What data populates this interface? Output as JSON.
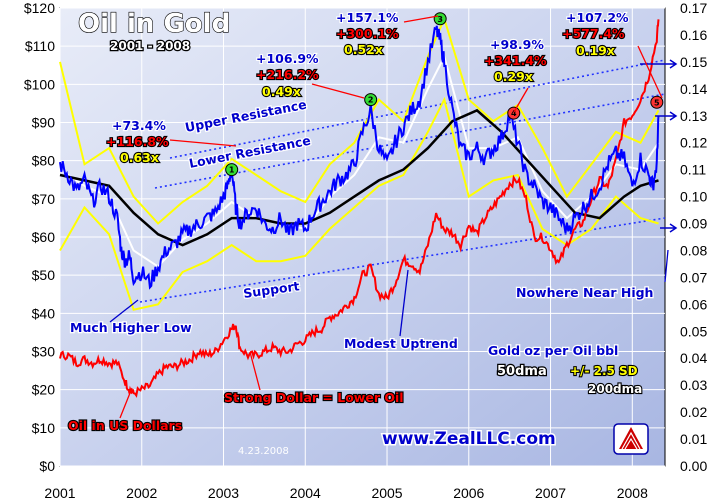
{
  "chart_data": {
    "type": "line",
    "title": "Oil in Gold",
    "subtitle": "2001 - 2008",
    "date_stamp": "4.23.2008",
    "website": "www.ZealLLC.com",
    "x_range": [
      2001.0,
      2008.4
    ],
    "x_ticks": [
      "2001",
      "2002",
      "2003",
      "2004",
      "2005",
      "2006",
      "2007",
      "2008"
    ],
    "y_left": {
      "range": [
        0,
        120
      ],
      "ticks": [
        "$0",
        "$10",
        "$20",
        "$30",
        "$40",
        "$50",
        "$60",
        "$70",
        "$80",
        "$90",
        "$100",
        "$110",
        "$120"
      ]
    },
    "y_right": {
      "range": [
        0.0,
        0.17
      ],
      "ticks": [
        "0.00",
        "0.01",
        "0.02",
        "0.03",
        "0.04",
        "0.05",
        "0.06",
        "0.07",
        "0.08",
        "0.09",
        "0.10",
        "0.11",
        "0.12",
        "0.13",
        "0.14",
        "0.15",
        "0.16",
        "0.17"
      ]
    },
    "grid": true,
    "legend_text": {
      "line1": "Gold oz per Oil bbl",
      "line2a": "50dma",
      "line2b": "+/- 2.5 SD",
      "line3": "200dma"
    },
    "series": [
      {
        "name": "Gold oz per Oil bbl",
        "axis": "right",
        "color": "#0000ff",
        "x": [
          2001.0,
          2001.1,
          2001.2,
          2001.3,
          2001.4,
          2001.5,
          2001.6,
          2001.7,
          2001.75,
          2001.8,
          2001.85,
          2001.9,
          2002.0,
          2002.1,
          2002.2,
          2002.3,
          2002.4,
          2002.5,
          2002.6,
          2002.7,
          2002.8,
          2002.9,
          2003.0,
          2003.05,
          2003.1,
          2003.15,
          2003.2,
          2003.3,
          2003.4,
          2003.5,
          2003.6,
          2003.7,
          2003.8,
          2003.9,
          2004.0,
          2004.1,
          2004.2,
          2004.3,
          2004.4,
          2004.5,
          2004.6,
          2004.7,
          2004.8,
          2004.9,
          2005.0,
          2005.1,
          2005.2,
          2005.3,
          2005.4,
          2005.5,
          2005.6,
          2005.65,
          2005.7,
          2005.8,
          2005.9,
          2006.0,
          2006.1,
          2006.2,
          2006.3,
          2006.4,
          2006.5,
          2006.6,
          2006.7,
          2006.8,
          2006.9,
          2007.0,
          2007.1,
          2007.2,
          2007.3,
          2007.4,
          2007.5,
          2007.6,
          2007.7,
          2007.8,
          2007.9,
          2008.0,
          2008.1,
          2008.2,
          2008.25,
          2008.3,
          2008.32
        ],
        "values": [
          0.112,
          0.108,
          0.102,
          0.106,
          0.098,
          0.104,
          0.1,
          0.092,
          0.08,
          0.076,
          0.078,
          0.07,
          0.072,
          0.068,
          0.074,
          0.08,
          0.082,
          0.086,
          0.088,
          0.09,
          0.092,
          0.094,
          0.1,
          0.104,
          0.11,
          0.096,
          0.09,
          0.094,
          0.096,
          0.09,
          0.088,
          0.092,
          0.086,
          0.09,
          0.088,
          0.094,
          0.098,
          0.102,
          0.106,
          0.108,
          0.112,
          0.124,
          0.132,
          0.118,
          0.112,
          0.12,
          0.126,
          0.132,
          0.136,
          0.15,
          0.162,
          0.158,
          0.15,
          0.132,
          0.118,
          0.115,
          0.118,
          0.114,
          0.118,
          0.122,
          0.13,
          0.12,
          0.108,
          0.104,
          0.098,
          0.096,
          0.092,
          0.088,
          0.092,
          0.096,
          0.1,
          0.104,
          0.112,
          0.116,
          0.114,
          0.104,
          0.114,
          0.108,
          0.104,
          0.112,
          0.13
        ]
      },
      {
        "name": "Oil in US Dollars",
        "axis": "left",
        "color": "#ff0000",
        "x": [
          2001.0,
          2001.1,
          2001.2,
          2001.3,
          2001.4,
          2001.5,
          2001.6,
          2001.7,
          2001.8,
          2001.85,
          2001.9,
          2002.0,
          2002.1,
          2002.2,
          2002.3,
          2002.4,
          2002.5,
          2002.6,
          2002.7,
          2002.8,
          2002.9,
          2003.0,
          2003.1,
          2003.15,
          2003.2,
          2003.3,
          2003.4,
          2003.5,
          2003.6,
          2003.7,
          2003.8,
          2003.9,
          2004.0,
          2004.1,
          2004.2,
          2004.3,
          2004.4,
          2004.5,
          2004.6,
          2004.7,
          2004.8,
          2004.9,
          2005.0,
          2005.1,
          2005.2,
          2005.3,
          2005.4,
          2005.5,
          2005.6,
          2005.7,
          2005.8,
          2005.9,
          2006.0,
          2006.1,
          2006.2,
          2006.3,
          2006.4,
          2006.5,
          2006.6,
          2006.7,
          2006.8,
          2006.9,
          2007.0,
          2007.1,
          2007.2,
          2007.3,
          2007.4,
          2007.5,
          2007.6,
          2007.7,
          2007.8,
          2007.9,
          2008.0,
          2008.1,
          2008.2,
          2008.3,
          2008.32
        ],
        "values": [
          29,
          29,
          27,
          28,
          27,
          28,
          27,
          27,
          22,
          20,
          19,
          20,
          21,
          24,
          26,
          26,
          27,
          28,
          30,
          29,
          30,
          33,
          36,
          37,
          31,
          29,
          29,
          30,
          31,
          30,
          30,
          32,
          33,
          35,
          36,
          39,
          40,
          42,
          44,
          50,
          52,
          45,
          44,
          48,
          54,
          53,
          51,
          58,
          66,
          62,
          61,
          58,
          63,
          61,
          65,
          68,
          71,
          74,
          75,
          70,
          60,
          60,
          57,
          53,
          58,
          62,
          64,
          70,
          75,
          73,
          80,
          90,
          92,
          96,
          102,
          112,
          117
        ]
      },
      {
        "name": "50dma",
        "axis": "right",
        "color": "#ffffff",
        "x": [
          2001.0,
          2001.3,
          2001.6,
          2001.9,
          2002.2,
          2002.5,
          2002.8,
          2003.1,
          2003.4,
          2003.7,
          2004.0,
          2004.3,
          2004.6,
          2004.9,
          2005.2,
          2005.5,
          2005.7,
          2006.0,
          2006.3,
          2006.6,
          2006.9,
          2007.2,
          2007.5,
          2007.8,
          2008.1,
          2008.32
        ],
        "values": [
          0.11,
          0.104,
          0.1,
          0.08,
          0.074,
          0.084,
          0.09,
          0.098,
          0.092,
          0.09,
          0.088,
          0.1,
          0.108,
          0.122,
          0.12,
          0.14,
          0.152,
          0.118,
          0.118,
          0.122,
          0.102,
          0.092,
          0.1,
          0.112,
          0.11,
          0.12
        ]
      },
      {
        "name": "+/- 2.5 SD",
        "axis": "right",
        "color": "#ffff00",
        "x": [
          2001.0,
          2001.3,
          2001.6,
          2001.9,
          2002.2,
          2002.5,
          2002.8,
          2003.1,
          2003.4,
          2003.7,
          2004.0,
          2004.3,
          2004.6,
          2004.9,
          2005.2,
          2005.5,
          2005.7,
          2006.0,
          2006.3,
          2006.6,
          2006.9,
          2007.2,
          2007.5,
          2007.8,
          2008.1,
          2008.32
        ],
        "upper": [
          0.15,
          0.112,
          0.118,
          0.1,
          0.09,
          0.098,
          0.104,
          0.114,
          0.108,
          0.102,
          0.098,
          0.112,
          0.12,
          0.136,
          0.128,
          0.152,
          0.166,
          0.136,
          0.128,
          0.134,
          0.118,
          0.1,
          0.112,
          0.124,
          0.12,
          0.132
        ],
        "lower": [
          0.08,
          0.096,
          0.086,
          0.058,
          0.06,
          0.072,
          0.076,
          0.082,
          0.076,
          0.076,
          0.078,
          0.088,
          0.096,
          0.104,
          0.108,
          0.124,
          0.136,
          0.1,
          0.106,
          0.108,
          0.088,
          0.082,
          0.088,
          0.1,
          0.092,
          0.09
        ]
      },
      {
        "name": "200dma",
        "axis": "right",
        "color": "#000000",
        "x": [
          2001.0,
          2001.3,
          2001.6,
          2001.9,
          2002.2,
          2002.5,
          2002.8,
          2003.1,
          2003.4,
          2003.7,
          2004.0,
          2004.3,
          2004.6,
          2004.9,
          2005.2,
          2005.5,
          2005.8,
          2006.1,
          2006.4,
          2006.7,
          2007.0,
          2007.3,
          2007.6,
          2007.9,
          2008.1,
          2008.32
        ],
        "values": [
          0.108,
          0.106,
          0.104,
          0.094,
          0.086,
          0.082,
          0.086,
          0.092,
          0.092,
          0.09,
          0.09,
          0.094,
          0.1,
          0.106,
          0.11,
          0.118,
          0.128,
          0.132,
          0.124,
          0.114,
          0.104,
          0.094,
          0.092,
          0.1,
          0.104,
          0.106
        ]
      }
    ],
    "annotations": {
      "main_title": "Oil in Gold",
      "years": "2001 - 2008",
      "pct_1_blue": "+73.4%",
      "pct_1_red": "+116.8%",
      "ratio_1": "0.63x",
      "pct_2_blue": "+106.9%",
      "pct_2_red": "+216.2%",
      "ratio_2": "0.49x",
      "pct_3_blue": "+157.1%",
      "pct_3_red": "+300.1%",
      "ratio_3": "0.52x",
      "pct_4_blue": "+98.9%",
      "pct_4_red": "+341.4%",
      "ratio_4": "0.29x",
      "pct_5_blue": "+107.2%",
      "pct_5_red": "+577.4%",
      "ratio_5": "0.19x",
      "upper_resistance": "Upper Resistance",
      "lower_resistance": "Lower Resistance",
      "support": "Support",
      "higher_low": "Much Higher Low",
      "modest_uptrend": "Modest Uptrend",
      "nowhere_near_high": "Nowhere Near High",
      "strong_dollar": "Strong Dollar = Lower Oil",
      "oil_usd": "Oil in US Dollars",
      "marker_1": "1",
      "marker_2": "2",
      "marker_3": "3",
      "marker_4": "4",
      "marker_5": "5"
    }
  }
}
